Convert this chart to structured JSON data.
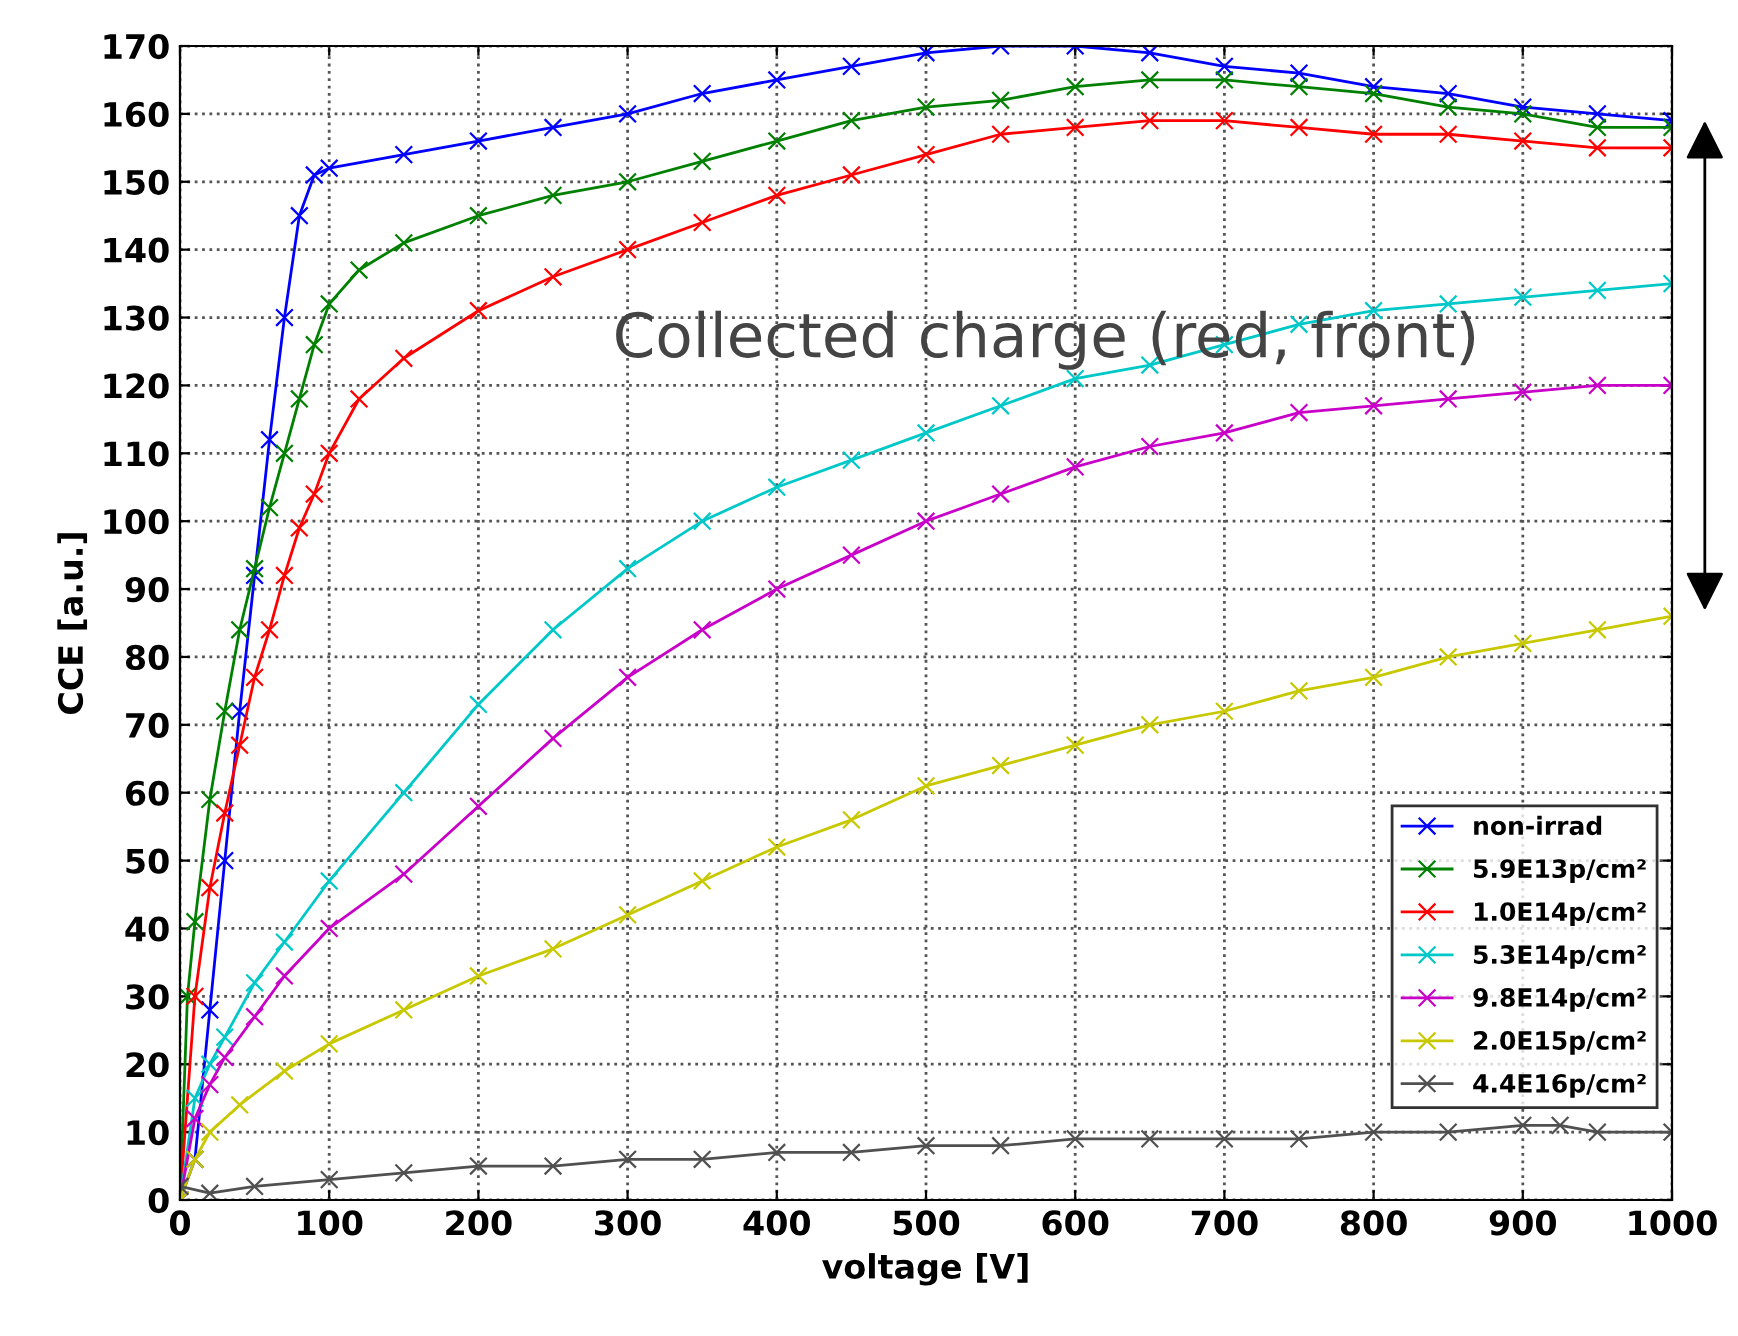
{
  "chart_data": {
    "type": "line",
    "xlabel": "voltage [V]",
    "ylabel": "CCE [a.u.]",
    "xlim": [
      0,
      1000
    ],
    "xticks": [
      0,
      100,
      200,
      300,
      400,
      500,
      600,
      700,
      800,
      900,
      1000
    ],
    "ylim": [
      0,
      170
    ],
    "yticks": [
      0,
      10,
      20,
      30,
      40,
      50,
      60,
      70,
      80,
      90,
      100,
      110,
      120,
      130,
      140,
      150,
      160,
      170
    ],
    "grid": true,
    "legend": "bottom right",
    "marker": "cross",
    "line_style": "solid",
    "annotations": [
      "Collected charge (red, front)"
    ],
    "series": [
      {
        "name": "non-irrad",
        "color": "#0000ff",
        "x": [
          0,
          10,
          20,
          30,
          40,
          50,
          60,
          70,
          80,
          90,
          100,
          150,
          200,
          250,
          300,
          350,
          400,
          450,
          500,
          550,
          600,
          650,
          700,
          750,
          800,
          850,
          900,
          950,
          1000
        ],
        "values": [
          0,
          6,
          28,
          50,
          72,
          92,
          112,
          130,
          145,
          151,
          152,
          154,
          156,
          158,
          160,
          163,
          165,
          167,
          169,
          170,
          170,
          169,
          167,
          166,
          164,
          163,
          161,
          160,
          159
        ]
      },
      {
        "name": "5.9E13p/cm²",
        "color": "#008000",
        "x": [
          0,
          5,
          10,
          20,
          30,
          40,
          50,
          60,
          70,
          80,
          90,
          100,
          120,
          150,
          200,
          250,
          300,
          350,
          400,
          450,
          500,
          550,
          600,
          650,
          700,
          750,
          800,
          850,
          900,
          950,
          1000
        ],
        "values": [
          0,
          30,
          41,
          59,
          72,
          84,
          93,
          102,
          110,
          118,
          126,
          132,
          137,
          141,
          145,
          148,
          150,
          153,
          156,
          159,
          161,
          162,
          164,
          165,
          165,
          164,
          163,
          161,
          160,
          158,
          158
        ]
      },
      {
        "name": "1.0E14p/cm²",
        "color": "#ff0000",
        "x": [
          0,
          10,
          20,
          30,
          40,
          50,
          60,
          70,
          80,
          90,
          100,
          120,
          150,
          200,
          250,
          300,
          350,
          400,
          450,
          500,
          550,
          600,
          650,
          700,
          750,
          800,
          850,
          900,
          950,
          1000
        ],
        "values": [
          0,
          30,
          46,
          57,
          67,
          77,
          84,
          92,
          99,
          104,
          110,
          118,
          124,
          131,
          136,
          140,
          144,
          148,
          151,
          154,
          157,
          158,
          159,
          159,
          158,
          157,
          157,
          156,
          155,
          155
        ]
      },
      {
        "name": "5.3E14p/cm²",
        "color": "#00c8c8",
        "x": [
          0,
          10,
          20,
          30,
          50,
          70,
          100,
          150,
          200,
          250,
          300,
          350,
          400,
          450,
          500,
          550,
          600,
          650,
          700,
          750,
          800,
          850,
          900,
          950,
          1000
        ],
        "values": [
          0,
          15,
          20,
          24,
          32,
          38,
          47,
          60,
          73,
          84,
          93,
          100,
          105,
          109,
          113,
          117,
          121,
          123,
          126,
          129,
          131,
          132,
          133,
          134,
          135
        ]
      },
      {
        "name": "9.8E14p/cm²",
        "color": "#c800c8",
        "x": [
          0,
          10,
          20,
          30,
          50,
          70,
          100,
          150,
          200,
          250,
          300,
          350,
          400,
          450,
          500,
          550,
          600,
          650,
          700,
          750,
          800,
          850,
          900,
          950,
          1000
        ],
        "values": [
          0,
          12,
          17,
          21,
          27,
          33,
          40,
          48,
          58,
          68,
          77,
          84,
          90,
          95,
          100,
          104,
          108,
          111,
          113,
          116,
          117,
          118,
          119,
          120,
          120
        ]
      },
      {
        "name": "2.0E15p/cm²",
        "color": "#c8c800",
        "x": [
          0,
          10,
          20,
          40,
          70,
          100,
          150,
          200,
          250,
          300,
          350,
          400,
          450,
          500,
          550,
          600,
          650,
          700,
          750,
          800,
          850,
          900,
          950,
          1000
        ],
        "values": [
          0,
          6,
          10,
          14,
          19,
          23,
          28,
          33,
          37,
          42,
          47,
          52,
          56,
          61,
          64,
          67,
          70,
          72,
          75,
          77,
          80,
          82,
          84,
          86
        ]
      },
      {
        "name": "4.4E16p/cm²",
        "color": "#505050",
        "x": [
          0,
          20,
          50,
          100,
          150,
          200,
          250,
          300,
          350,
          400,
          450,
          500,
          550,
          600,
          650,
          700,
          750,
          800,
          850,
          900,
          925,
          950,
          1000
        ],
        "values": [
          2,
          1,
          2,
          3,
          4,
          5,
          5,
          6,
          6,
          7,
          7,
          8,
          8,
          9,
          9,
          9,
          9,
          10,
          10,
          11,
          11,
          10,
          10
        ]
      }
    ]
  }
}
